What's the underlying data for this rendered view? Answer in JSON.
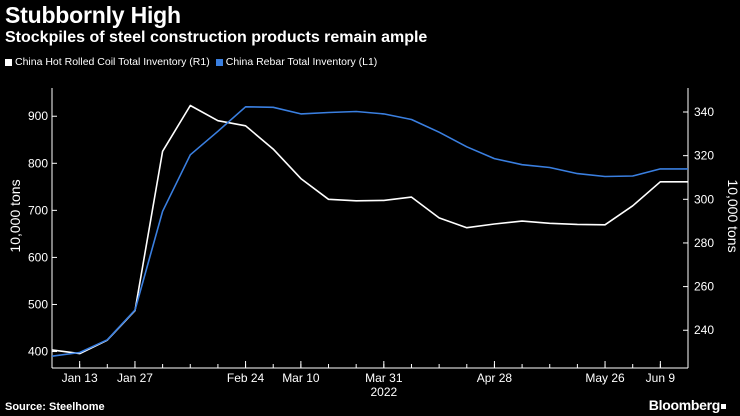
{
  "chart_data": {
    "type": "line",
    "title": "Stubbornly High",
    "subtitle": "Stockpiles of steel construction products remain ample",
    "source": "Source: Steelhome",
    "brand": "Bloomberg",
    "x_tick_labels": [
      "Jan 13",
      "Jan 27",
      "Feb 24",
      "Mar 10",
      "Mar 31",
      "Apr 28",
      "May 26",
      "Jun 9"
    ],
    "x_year_label": "2022",
    "left_axis": {
      "label": "10,000 tons",
      "range": [
        365,
        960
      ],
      "ticks": [
        400,
        500,
        600,
        700,
        800,
        900
      ]
    },
    "right_axis": {
      "label": "10,000 tons",
      "range": [
        222.7,
        351.0
      ],
      "ticks": [
        240,
        260,
        280,
        300,
        320,
        340
      ]
    },
    "grid": false,
    "legend_position": "top-left",
    "series": [
      {
        "name": "China Hot Rolled Coil Total Inventory (R1)",
        "axis": "right",
        "color": "#ffffff",
        "x": [
          "2022-01-06",
          "2022-01-13",
          "2022-01-20",
          "2022-01-27",
          "2022-02-03",
          "2022-02-10",
          "2022-02-17",
          "2022-02-24",
          "2022-03-03",
          "2022-03-10",
          "2022-03-17",
          "2022-03-24",
          "2022-03-31",
          "2022-04-07",
          "2022-04-14",
          "2022-04-21",
          "2022-04-28",
          "2022-05-05",
          "2022-05-12",
          "2022-05-19",
          "2022-05-26",
          "2022-06-02",
          "2022-06-09",
          "2022-06-16"
        ],
        "values": [
          231.0,
          229.3,
          235.5,
          249.0,
          322.0,
          343.0,
          336.0,
          333.7,
          323.0,
          309.5,
          300.0,
          299.3,
          299.5,
          301.0,
          291.5,
          287.0,
          288.7,
          290.0,
          289.0,
          288.5,
          288.3,
          297.0,
          308.0,
          308.0
        ]
      },
      {
        "name": "China Rebar Total Inventory (L1)",
        "axis": "left",
        "color": "#3a7fe0",
        "x": [
          "2022-01-06",
          "2022-01-13",
          "2022-01-20",
          "2022-01-27",
          "2022-02-03",
          "2022-02-10",
          "2022-02-17",
          "2022-02-24",
          "2022-03-03",
          "2022-03-10",
          "2022-03-17",
          "2022-03-24",
          "2022-03-31",
          "2022-04-07",
          "2022-04-14",
          "2022-04-21",
          "2022-04-28",
          "2022-05-05",
          "2022-05-12",
          "2022-05-19",
          "2022-05-26",
          "2022-06-02",
          "2022-06-09",
          "2022-06-16"
        ],
        "values": [
          390,
          398,
          425,
          488,
          698,
          818,
          868,
          920,
          919,
          905,
          908,
          910,
          905,
          893,
          866,
          835,
          810,
          797,
          791,
          778,
          772,
          773,
          788,
          788
        ]
      }
    ]
  }
}
